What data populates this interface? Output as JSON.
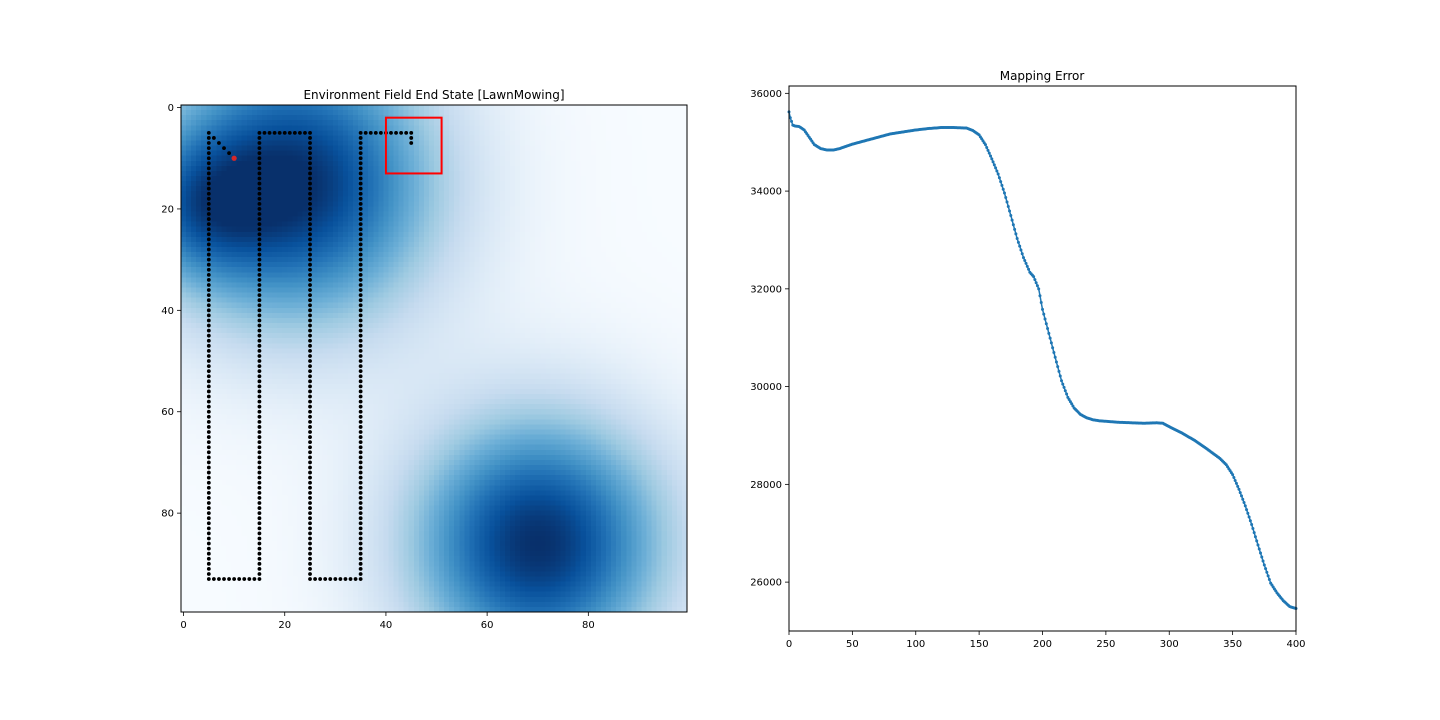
{
  "chart_data": [
    {
      "type": "heatmap",
      "title": "Environment Field End State [LawnMowing]",
      "colormap": "Blues",
      "grid_size": [
        100,
        100
      ],
      "xlim": [
        -0.5,
        99.5
      ],
      "ylim_inverted": [
        99.5,
        -0.5
      ],
      "x_ticks": [
        0,
        20,
        40,
        60,
        80
      ],
      "y_ticks": [
        0,
        20,
        40,
        60,
        80
      ],
      "field_peaks": [
        {
          "x": 22,
          "y": 15,
          "value": 1.0
        },
        {
          "x": 70,
          "y": 86,
          "value": 1.0
        },
        {
          "x": 2,
          "y": 20,
          "value": 0.35
        }
      ],
      "path_color": "#000000",
      "path_waypoints": [
        [
          10,
          10
        ],
        [
          5,
          5
        ],
        [
          5,
          93
        ],
        [
          15,
          93
        ],
        [
          15,
          5
        ],
        [
          25,
          5
        ],
        [
          25,
          93
        ],
        [
          35,
          93
        ],
        [
          35,
          5
        ],
        [
          45,
          5
        ],
        [
          45,
          7
        ]
      ],
      "current_position": {
        "x": 10,
        "y": 10,
        "color": "#d62728"
      },
      "view_box_region": {
        "x0": 40,
        "y0": 2,
        "x1": 51,
        "y1": 13,
        "color": "#ff0000"
      }
    },
    {
      "type": "line",
      "title": "Mapping Error",
      "xlim": [
        0,
        400
      ],
      "ylim": [
        25000,
        36150
      ],
      "x_ticks": [
        0,
        50,
        100,
        150,
        200,
        250,
        300,
        350,
        400
      ],
      "y_ticks": [
        26000,
        28000,
        30000,
        32000,
        34000,
        36000
      ],
      "color": "#1f77b4",
      "marker": "dot",
      "series": [
        {
          "x": [
            0,
            1,
            3,
            5,
            8,
            12,
            16,
            20,
            25,
            30,
            35,
            40,
            50,
            60,
            70,
            80,
            90,
            100,
            110,
            120,
            130,
            140,
            145,
            150,
            155,
            160,
            165,
            170,
            175,
            180,
            185,
            190,
            193,
            197,
            200,
            205,
            210,
            215,
            220,
            225,
            230,
            235,
            240,
            245,
            250,
            260,
            270,
            280,
            290,
            295,
            300,
            310,
            320,
            330,
            340,
            345,
            350,
            355,
            360,
            365,
            370,
            375,
            380,
            385,
            390,
            395,
            400
          ],
          "y": [
            35620,
            35500,
            35350,
            35330,
            35320,
            35250,
            35100,
            34950,
            34870,
            34840,
            34840,
            34870,
            34960,
            35030,
            35100,
            35170,
            35210,
            35250,
            35280,
            35300,
            35300,
            35290,
            35240,
            35150,
            34950,
            34660,
            34350,
            33960,
            33500,
            33030,
            32640,
            32340,
            32250,
            32000,
            31580,
            31090,
            30600,
            30120,
            29780,
            29560,
            29430,
            29360,
            29320,
            29300,
            29290,
            29270,
            29260,
            29250,
            29260,
            29250,
            29180,
            29050,
            28900,
            28720,
            28530,
            28400,
            28200,
            27900,
            27560,
            27180,
            26760,
            26350,
            25980,
            25780,
            25620,
            25500,
            25460
          ]
        }
      ]
    }
  ]
}
